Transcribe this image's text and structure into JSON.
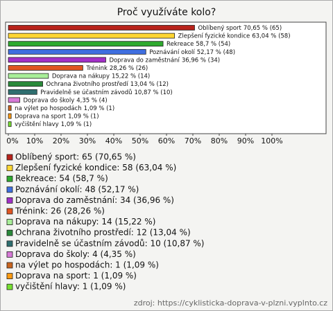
{
  "chart_data": {
    "type": "barh",
    "title": "Proč využíváte kolo?",
    "categories": [
      "Oblíbený sport",
      "Zlepšení fyzické kondice",
      "Rekreace",
      "Poznávání okolí",
      "Doprava do zaměstnání",
      "Trénink",
      "Doprava na nákupy",
      "Ochrana životního prostředí",
      "Pravidelně se účastním závodů",
      "Doprava do školy",
      "na výlet po hospodách",
      "Doprava na sport",
      "vyčištění hlavy"
    ],
    "values": [
      70.65,
      63.04,
      58.7,
      52.17,
      36.96,
      28.26,
      15.22,
      13.04,
      10.87,
      4.35,
      1.09,
      1.09,
      1.09
    ],
    "value_labels": [
      "70,65 % (65)",
      "63,04 % (58)",
      "58,7 % (54)",
      "52,17 % (48)",
      "36,96 % (34)",
      "28,26 % (26)",
      "15,22 % (14)",
      "13,04 % (12)",
      "10,87 % (10)",
      "4,35 % (4)",
      "1,09 % (1)",
      "1,09 % (1)",
      "1,09 % (1)"
    ],
    "colors": [
      "#b8231b",
      "#ffd633",
      "#2eaa2e",
      "#3f6fe0",
      "#a230c8",
      "#e05522",
      "#a8ee98",
      "#2a8a3a",
      "#2f6f70",
      "#d77ad6",
      "#c8641e",
      "#ff9a10",
      "#76e030"
    ],
    "legend_labels": [
      "Oblíbený sport: 65 (70,65 %)",
      "Zlepšení fyzické kondice: 58 (63,04 %)",
      "Rekreace: 54 (58,7 %)",
      "Poznávání okolí: 48 (52,17 %)",
      "Doprava do zaměstnání: 34 (36,96 %)",
      "Trénink: 26 (28,26 %)",
      "Doprava na nákupy: 14 (15,22 %)",
      "Ochrana životního prostředí: 12 (13,04 %)",
      "Pravidelně se účastním závodů: 10 (10,87 %)",
      "Doprava do školy: 4 (4,35 %)",
      "na výlet po hospodách: 1 (1,09 %)",
      "Doprava na sport: 1 (1,09 %)",
      "vyčištění hlavy: 1 (1,09 %)"
    ],
    "xlim": [
      0,
      100
    ],
    "xticks": [
      {
        "value": 0,
        "label": "0%"
      },
      {
        "value": 10,
        "label": "10%"
      },
      {
        "value": 20,
        "label": "20%"
      },
      {
        "value": 30,
        "label": "30%"
      },
      {
        "value": 40,
        "label": "40%"
      },
      {
        "value": 50,
        "label": "50%"
      },
      {
        "value": 60,
        "label": "60%"
      },
      {
        "value": 70,
        "label": "70%"
      },
      {
        "value": 80,
        "label": "80%"
      },
      {
        "value": 90,
        "label": "90%"
      },
      {
        "value": 100,
        "label": "100%"
      }
    ],
    "source": "zdroj: https://cyklisticka-doprava-v-plzni.vyplnto.cz"
  }
}
